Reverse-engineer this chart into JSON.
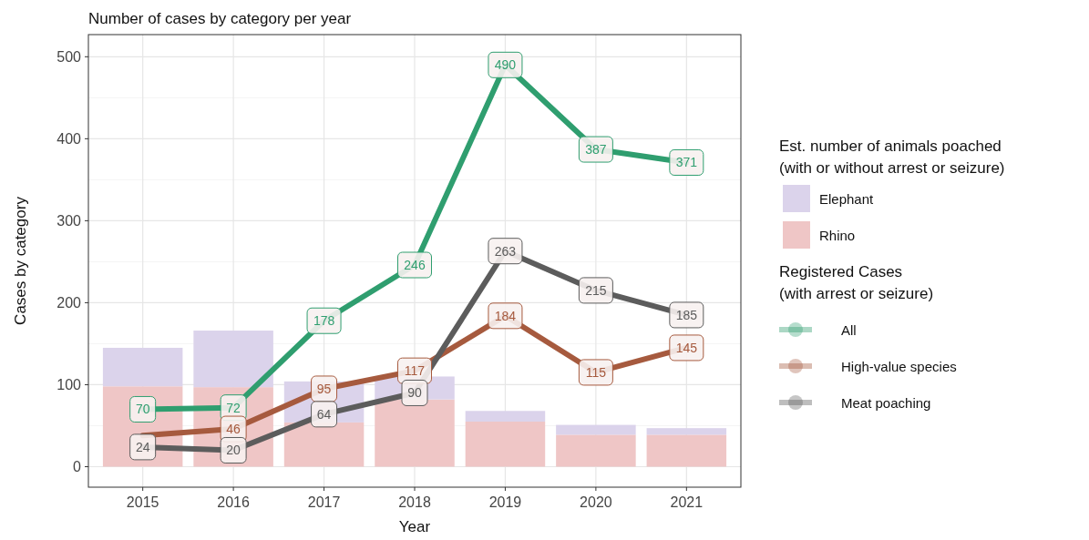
{
  "chart_data": {
    "type": "bar",
    "title": "Number of cases by category per year",
    "xlabel": "Year",
    "ylabel": "Cases by category",
    "legend_title": "Est. number of animals poached\n(with or without arrest or seizure)",
    "annotations": [
      "Registered Cases\n(with arrest or seizure)"
    ],
    "categories": [
      "2015",
      "2016",
      "2017",
      "2018",
      "2019",
      "2020",
      "2021"
    ],
    "stacked": true,
    "grid": true,
    "legend": "right",
    "ylim": [
      -25,
      527
    ],
    "yticks": [
      0,
      100,
      200,
      300,
      400,
      500
    ],
    "series": [
      {
        "name": "Rhino",
        "color": "#efc6c6",
        "values": [
          98,
          97,
          54,
          82,
          55,
          39,
          39
        ]
      },
      {
        "name": "Elephant",
        "color": "#dbd3eb",
        "values": [
          47,
          69,
          50,
          28,
          13,
          12,
          8
        ]
      },
      {
        "name": "All",
        "type": "line",
        "color": "#2f9e6f",
        "marker": "square",
        "values": [
          70,
          72,
          178,
          246,
          490,
          387,
          371
        ],
        "value_labels": [
          "70",
          "72",
          "178",
          "246",
          "490",
          "387",
          "371"
        ]
      },
      {
        "name": "High-value species",
        "type": "line",
        "color": "#a65a3e",
        "marker": "square",
        "values": [
          38,
          46,
          95,
          117,
          184,
          115,
          145
        ],
        "value_labels": [
          null,
          "46",
          "95",
          "117",
          "184",
          "115",
          "145"
        ]
      },
      {
        "name": "Meat poaching",
        "type": "line",
        "color": "#5c5c5c",
        "marker": "square",
        "values": [
          24,
          20,
          64,
          90,
          263,
          215,
          185
        ],
        "value_labels": [
          "24",
          "20",
          "64",
          "90",
          "263",
          "215",
          "185"
        ]
      }
    ]
  }
}
